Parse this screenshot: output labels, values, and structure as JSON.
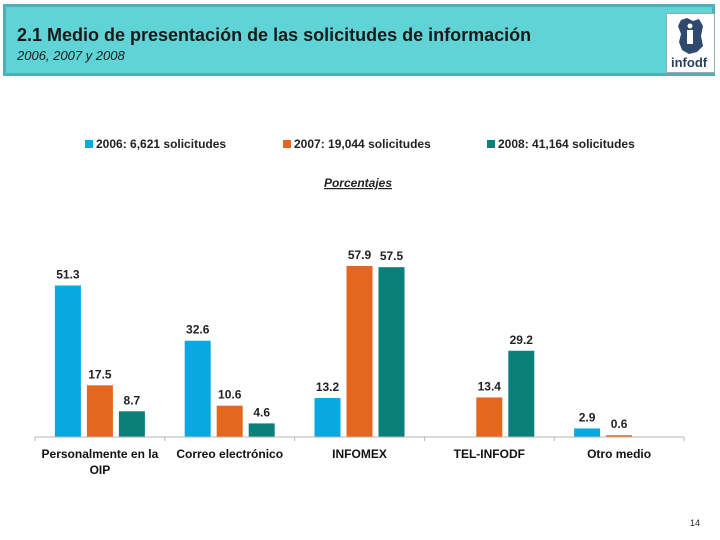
{
  "header": {
    "title": "2.1 Medio de presentación de las solicitudes de información",
    "subtitle": "2006, 2007 y 2008",
    "logo_text": "infodf"
  },
  "chart_data": {
    "type": "bar",
    "title": "Porcentajes",
    "categories": [
      "Personalmente en la OIP",
      "Correo electrónico",
      "INFOMEX",
      "TEL-INFODF",
      "Otro medio"
    ],
    "category_lines": [
      [
        "Personalmente en la",
        "OIP"
      ],
      [
        "Correo electrónico"
      ],
      [
        "INFOMEX"
      ],
      [
        "TEL-INFODF"
      ],
      [
        "Otro medio"
      ]
    ],
    "series": [
      {
        "name": "2006: 6,621 solicitudes",
        "color": "#0aa8e0",
        "values": [
          51.3,
          32.6,
          13.2,
          null,
          2.9
        ]
      },
      {
        "name": "2007: 19,044 solicitudes",
        "color": "#e4661f",
        "values": [
          17.5,
          10.6,
          57.9,
          13.4,
          0.6
        ]
      },
      {
        "name": "2008: 41,164 solicitudes",
        "color": "#0b7f7a",
        "values": [
          8.7,
          4.6,
          57.5,
          29.2,
          null
        ]
      }
    ],
    "ylim": [
      0,
      65
    ],
    "legend_position": "top",
    "xlabel": "",
    "ylabel": ""
  },
  "page_number": "14"
}
